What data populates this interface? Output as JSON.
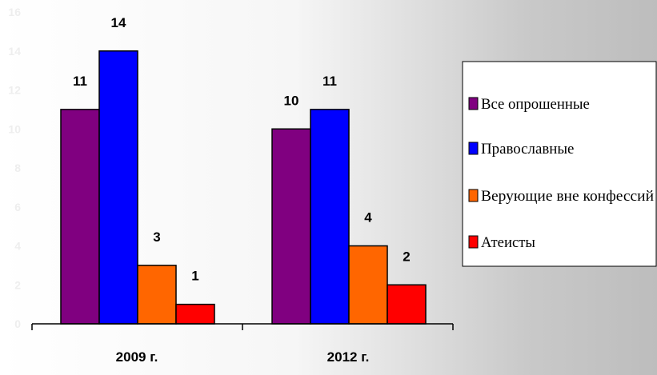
{
  "chart_data": {
    "type": "bar",
    "categories": [
      "2009 г.",
      "2012 г."
    ],
    "series": [
      {
        "name": "Все опрошенные",
        "values": [
          11,
          10
        ],
        "color": "#800080"
      },
      {
        "name": "Православные",
        "values": [
          14,
          11
        ],
        "color": "#0000ff"
      },
      {
        "name": "Верующие вне конфессий",
        "values": [
          3,
          4
        ],
        "color": "#ff6600"
      },
      {
        "name": "Атеисты",
        "values": [
          1,
          2
        ],
        "color": "#ff0000"
      }
    ],
    "ylim": [
      0,
      16
    ],
    "yticks": [
      0,
      2,
      4,
      6,
      8,
      10,
      12,
      14,
      16
    ],
    "legend_position": "right",
    "grid": false
  }
}
